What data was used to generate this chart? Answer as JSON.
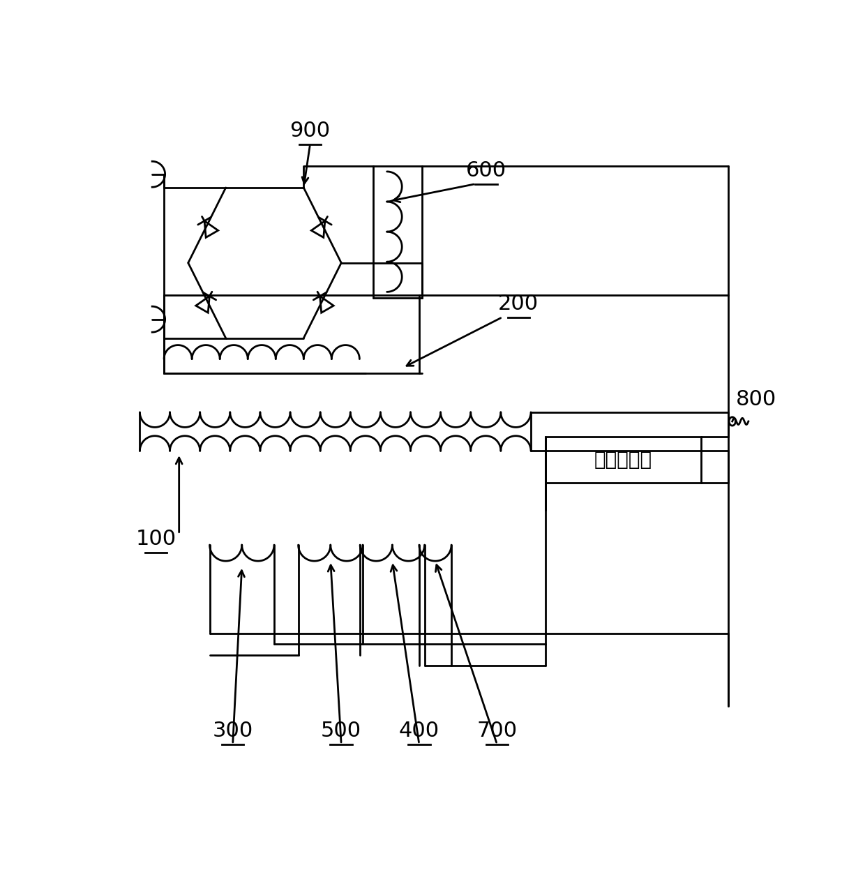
{
  "bg_color": "#ffffff",
  "lc": "#000000",
  "lw": 2.0,
  "vreg_text": "电压调节器",
  "figw": 12.4,
  "figh": 12.47,
  "dpi": 100
}
